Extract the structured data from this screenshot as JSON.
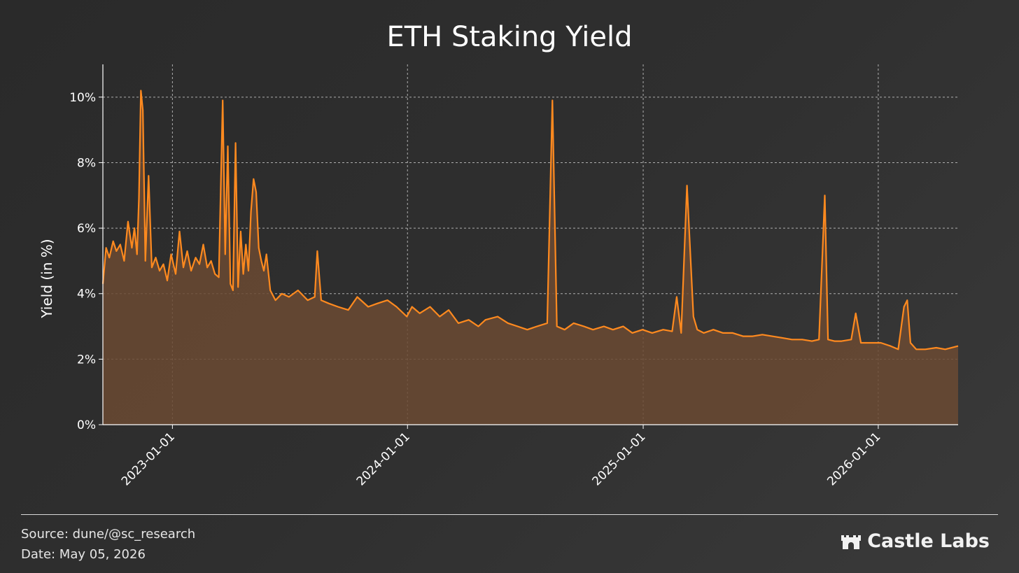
{
  "footer": {
    "source": "Source: dune/@sc_research",
    "date": "Date: May 05, 2026",
    "brand": "Castle Labs",
    "brand_icon": "castle-icon"
  },
  "colors": {
    "line": "#ff8a1f",
    "fill": "#6b4a33",
    "grid": "#cfcfcf",
    "axis": "#ffffff"
  },
  "chart_data": {
    "type": "area",
    "title": "ETH Staking Yield",
    "ylabel": "Yield (in %)",
    "xlabel": "",
    "xlim": [
      "2022-09-15",
      "2026-05-05"
    ],
    "ylim": [
      0,
      11
    ],
    "yticks": [
      0,
      2,
      4,
      6,
      8,
      10
    ],
    "ytick_labels": [
      "0%",
      "2%",
      "4%",
      "6%",
      "8%",
      "10%"
    ],
    "xticks": [
      "2023-01-01",
      "2024-01-01",
      "2025-01-01",
      "2026-01-01"
    ],
    "xtick_labels": [
      "2023-01-01",
      "2024-01-01",
      "2025-01-01",
      "2026-01-01"
    ],
    "grid": true,
    "series": [
      {
        "x": [
          "2022-09-15",
          "2022-09-20",
          "2022-09-25",
          "2022-10-01",
          "2022-10-06",
          "2022-10-12",
          "2022-10-18",
          "2022-10-24",
          "2022-10-30",
          "2022-11-03",
          "2022-11-07",
          "2022-11-10",
          "2022-11-13",
          "2022-11-16",
          "2022-11-20",
          "2022-11-25",
          "2022-11-30",
          "2022-12-06",
          "2022-12-12",
          "2022-12-18",
          "2022-12-24",
          "2022-12-30",
          "2023-01-06",
          "2023-01-12",
          "2023-01-18",
          "2023-01-24",
          "2023-01-30",
          "2023-02-06",
          "2023-02-12",
          "2023-02-18",
          "2023-02-24",
          "2023-03-02",
          "2023-03-08",
          "2023-03-14",
          "2023-03-20",
          "2023-03-24",
          "2023-03-28",
          "2023-04-01",
          "2023-04-05",
          "2023-04-09",
          "2023-04-13",
          "2023-04-17",
          "2023-04-21",
          "2023-04-25",
          "2023-04-29",
          "2023-05-03",
          "2023-05-07",
          "2023-05-11",
          "2023-05-15",
          "2023-05-19",
          "2023-05-23",
          "2023-05-27",
          "2023-06-02",
          "2023-06-10",
          "2023-06-20",
          "2023-07-01",
          "2023-07-15",
          "2023-07-30",
          "2023-08-10",
          "2023-08-14",
          "2023-08-20",
          "2023-09-01",
          "2023-09-15",
          "2023-10-01",
          "2023-10-15",
          "2023-11-01",
          "2023-11-15",
          "2023-12-01",
          "2023-12-15",
          "2023-12-31",
          "2024-01-08",
          "2024-01-20",
          "2024-02-05",
          "2024-02-20",
          "2024-03-05",
          "2024-03-20",
          "2024-04-05",
          "2024-04-20",
          "2024-05-01",
          "2024-05-20",
          "2024-06-05",
          "2024-06-20",
          "2024-07-05",
          "2024-07-20",
          "2024-08-05",
          "2024-08-13",
          "2024-08-20",
          "2024-09-01",
          "2024-09-15",
          "2024-10-01",
          "2024-10-15",
          "2024-11-01",
          "2024-11-15",
          "2024-12-01",
          "2024-12-15",
          "2024-12-31",
          "2025-01-15",
          "2025-02-01",
          "2025-02-15",
          "2025-02-22",
          "2025-03-01",
          "2025-03-10",
          "2025-03-20",
          "2025-03-26",
          "2025-04-05",
          "2025-04-20",
          "2025-05-05",
          "2025-05-20",
          "2025-06-05",
          "2025-06-20",
          "2025-07-05",
          "2025-07-20",
          "2025-08-05",
          "2025-08-20",
          "2025-09-05",
          "2025-09-20",
          "2025-10-01",
          "2025-10-10",
          "2025-10-15",
          "2025-10-25",
          "2025-11-05",
          "2025-11-20",
          "2025-11-27",
          "2025-12-05",
          "2025-12-20",
          "2026-01-05",
          "2026-01-20",
          "2026-02-01",
          "2026-02-10",
          "2026-02-15",
          "2026-02-20",
          "2026-03-01",
          "2026-03-15",
          "2026-04-01",
          "2026-04-15",
          "2026-05-05"
        ],
        "values": [
          4.3,
          5.4,
          5.1,
          5.6,
          5.3,
          5.5,
          5.0,
          6.2,
          5.4,
          6.0,
          5.2,
          6.9,
          10.2,
          9.6,
          5.0,
          7.6,
          4.8,
          5.1,
          4.7,
          4.9,
          4.4,
          5.2,
          4.6,
          5.9,
          4.8,
          5.3,
          4.7,
          5.1,
          4.9,
          5.5,
          4.8,
          5.0,
          4.6,
          4.5,
          9.9,
          5.2,
          8.5,
          4.3,
          4.1,
          8.6,
          4.2,
          5.9,
          4.6,
          5.5,
          4.7,
          6.5,
          7.5,
          7.1,
          5.4,
          5.0,
          4.7,
          5.2,
          4.1,
          3.8,
          4.0,
          3.9,
          4.1,
          3.8,
          3.9,
          5.3,
          3.8,
          3.7,
          3.6,
          3.5,
          3.9,
          3.6,
          3.7,
          3.8,
          3.6,
          3.3,
          3.6,
          3.4,
          3.6,
          3.3,
          3.5,
          3.1,
          3.2,
          3.0,
          3.2,
          3.3,
          3.1,
          3.0,
          2.9,
          3.0,
          3.1,
          9.9,
          3.0,
          2.9,
          3.1,
          3.0,
          2.9,
          3.0,
          2.9,
          3.0,
          2.8,
          2.9,
          2.8,
          2.9,
          2.85,
          3.9,
          2.8,
          7.3,
          3.3,
          2.9,
          2.8,
          2.9,
          2.8,
          2.8,
          2.7,
          2.7,
          2.75,
          2.7,
          2.65,
          2.6,
          2.6,
          2.55,
          2.6,
          7.0,
          2.6,
          2.55,
          2.55,
          2.6,
          3.4,
          2.5,
          2.5,
          2.5,
          2.4,
          2.3,
          3.6,
          3.8,
          2.5,
          2.3,
          2.3,
          2.35,
          2.3,
          2.4
        ]
      }
    ]
  }
}
